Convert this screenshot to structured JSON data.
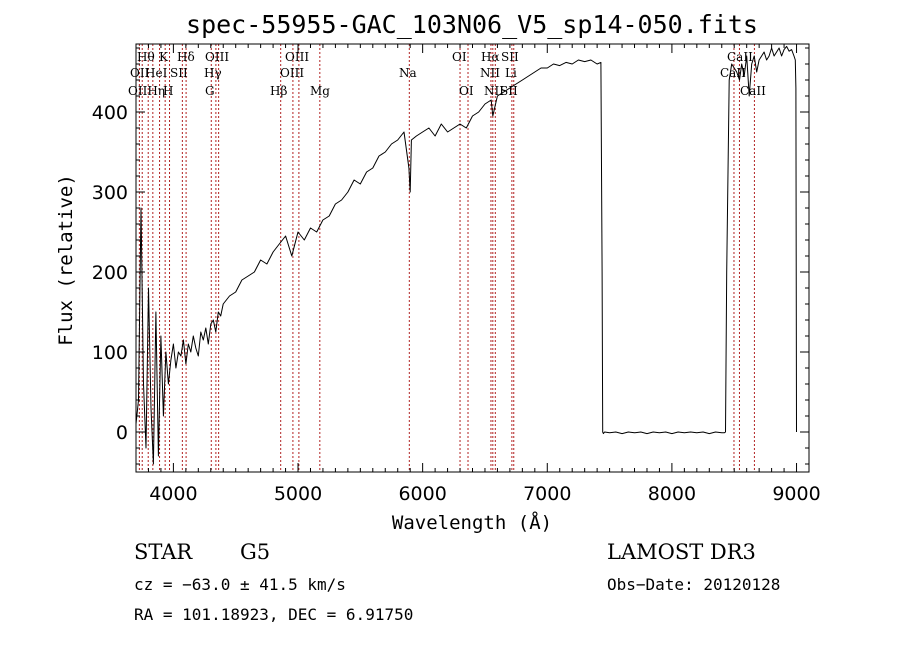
{
  "chart_data": {
    "type": "line",
    "title": "spec-55955-GAC_103N06_V5_sp14-050.fits",
    "xlabel": "Wavelength (Å)",
    "ylabel": "Flux (relative)",
    "xlim": [
      3700,
      9100
    ],
    "ylim": [
      -50,
      485
    ],
    "xticks": [
      4000,
      5000,
      6000,
      7000,
      8000,
      9000
    ],
    "yticks": [
      0,
      100,
      200,
      300,
      400
    ],
    "colors": {
      "spectrum": "#000000",
      "lines": "#b22222"
    },
    "series": [
      {
        "name": "flux",
        "x": [
          3700,
          3720,
          3740,
          3760,
          3780,
          3800,
          3820,
          3840,
          3860,
          3880,
          3900,
          3920,
          3940,
          3960,
          3980,
          4000,
          4020,
          4040,
          4060,
          4080,
          4100,
          4120,
          4140,
          4160,
          4180,
          4200,
          4220,
          4240,
          4260,
          4280,
          4300,
          4320,
          4340,
          4360,
          4380,
          4400,
          4450,
          4500,
          4550,
          4600,
          4650,
          4700,
          4750,
          4800,
          4850,
          4900,
          4950,
          5000,
          5050,
          5100,
          5150,
          5200,
          5250,
          5300,
          5350,
          5400,
          5450,
          5500,
          5550,
          5600,
          5650,
          5700,
          5750,
          5800,
          5850,
          5890,
          5900,
          5910,
          5950,
          6000,
          6050,
          6100,
          6150,
          6200,
          6250,
          6300,
          6350,
          6400,
          6450,
          6500,
          6550,
          6563,
          6600,
          6650,
          6700,
          6750,
          6800,
          6850,
          6900,
          6950,
          7000,
          7050,
          7100,
          7150,
          7200,
          7250,
          7300,
          7350,
          7400,
          7430,
          7440,
          7445,
          7450,
          7460,
          7500,
          7550,
          7600,
          7650,
          7700,
          7750,
          7800,
          7850,
          7900,
          7950,
          8000,
          8050,
          8100,
          8150,
          8200,
          8250,
          8300,
          8350,
          8400,
          8420,
          8430,
          8440,
          8460,
          8480,
          8500,
          8520,
          8542,
          8560,
          8580,
          8600,
          8620,
          8640,
          8660,
          8680,
          8700,
          8720,
          8740,
          8760,
          8780,
          8800,
          8820,
          8840,
          8860,
          8880,
          8900,
          8920,
          8940,
          8960,
          8980,
          8990,
          8995,
          9000
        ],
        "values": [
          10,
          40,
          280,
          60,
          -20,
          180,
          30,
          -40,
          150,
          -30,
          120,
          20,
          100,
          60,
          90,
          110,
          80,
          100,
          95,
          115,
          85,
          110,
          100,
          120,
          105,
          95,
          125,
          115,
          130,
          110,
          135,
          140,
          125,
          150,
          145,
          160,
          170,
          175,
          190,
          195,
          200,
          215,
          210,
          225,
          235,
          245,
          220,
          250,
          240,
          255,
          250,
          265,
          270,
          285,
          290,
          300,
          315,
          310,
          325,
          330,
          345,
          350,
          360,
          365,
          375,
          330,
          300,
          365,
          370,
          375,
          380,
          370,
          385,
          375,
          380,
          385,
          380,
          395,
          400,
          410,
          415,
          395,
          420,
          425,
          430,
          435,
          440,
          445,
          450,
          455,
          455,
          460,
          458,
          462,
          460,
          465,
          463,
          465,
          460,
          462,
          200,
          0,
          -2,
          0,
          -1,
          0,
          -2,
          0,
          -1,
          0,
          -2,
          0,
          -1,
          0,
          -2,
          0,
          -1,
          0,
          -1,
          0,
          -2,
          0,
          -1,
          -1,
          0,
          200,
          440,
          460,
          455,
          450,
          440,
          460,
          445,
          470,
          420,
          460,
          470,
          450,
          465,
          470,
          475,
          465,
          470,
          480,
          470,
          475,
          480,
          470,
          478,
          482,
          476,
          478,
          470,
          465,
          430,
          0
        ]
      }
    ],
    "spectral_lines": [
      {
        "wavelength": 3727,
        "labels": [
          "OII"
        ]
      },
      {
        "wavelength": 3750,
        "labels": [
          "Hθ"
        ]
      },
      {
        "wavelength": 3798,
        "labels": [
          "Hη"
        ]
      },
      {
        "wavelength": 3835,
        "labels": [
          "Hη"
        ]
      },
      {
        "wavelength": 3889,
        "labels": [
          "HeI"
        ]
      },
      {
        "wavelength": 3934,
        "labels": [
          "K"
        ]
      },
      {
        "wavelength": 3969,
        "labels": [
          "H"
        ]
      },
      {
        "wavelength": 4072,
        "labels": [
          "SII"
        ]
      },
      {
        "wavelength": 4102,
        "labels": [
          "Hδ"
        ]
      },
      {
        "wavelength": 4304,
        "labels": [
          "G"
        ]
      },
      {
        "wavelength": 4341,
        "labels": [
          "Hγ"
        ]
      },
      {
        "wavelength": 4363,
        "labels": [
          "OIII"
        ]
      },
      {
        "wavelength": 4861,
        "labels": [
          "Hβ"
        ]
      },
      {
        "wavelength": 4959,
        "labels": [
          "OIII"
        ]
      },
      {
        "wavelength": 5007,
        "labels": [
          "OIII"
        ]
      },
      {
        "wavelength": 5175,
        "labels": [
          "Mg"
        ]
      },
      {
        "wavelength": 5893,
        "labels": [
          "Na"
        ]
      },
      {
        "wavelength": 6300,
        "labels": [
          "OI"
        ]
      },
      {
        "wavelength": 6364,
        "labels": [
          "OI"
        ]
      },
      {
        "wavelength": 6548,
        "labels": [
          "NII"
        ]
      },
      {
        "wavelength": 6563,
        "labels": [
          "Hα"
        ]
      },
      {
        "wavelength": 6583,
        "labels": [
          "NII"
        ]
      },
      {
        "wavelength": 6716,
        "labels": [
          "SII"
        ]
      },
      {
        "wavelength": 6731,
        "labels": [
          "SII"
        ]
      },
      {
        "wavelength": 8498,
        "labels": [
          "CaII"
        ]
      },
      {
        "wavelength": 8542,
        "labels": [
          "CaII"
        ]
      },
      {
        "wavelength": 8662,
        "labels": [
          "CaII"
        ]
      }
    ],
    "line_annotations": {
      "oii": "OII",
      "htheta": "Hθ",
      "oii_hn": "OIIHη",
      "k": "K",
      "hei": "HeI",
      "hdelta": "Hδ",
      "sii": "SII",
      "h": "H",
      "oiii": "OIII",
      "hgamma": "Hγ",
      "g": "G",
      "oiii2": "OIII",
      "oiii3": "OIII",
      "hbeta": "Hβ",
      "mg": "Mg",
      "na": "Na",
      "oi": "OI",
      "oi2": "OI",
      "halpha": "Hα",
      "sii2": "SII",
      "nii": "NII",
      "li": "Li",
      "nii2": "NII",
      "sii3": "SII",
      "cah": "CaII",
      "caii": "CaII",
      "caii2": "CaII"
    }
  },
  "info": {
    "class": "STAR",
    "subclass": "G5",
    "survey": "LAMOST DR3",
    "cz": "cz = −63.0 ± 41.5 km/s",
    "obsdate": "Obs−Date: 20120128",
    "coords": "RA = 101.18923, DEC =   6.91750"
  }
}
